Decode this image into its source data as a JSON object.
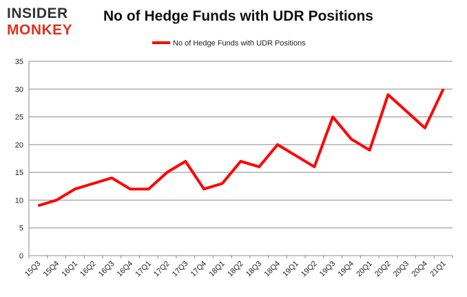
{
  "logo": {
    "line1": "INSIDER",
    "line2": "MONKEY"
  },
  "chart_data": {
    "type": "line",
    "title": "No of Hedge Funds with UDR Positions",
    "xlabel": "",
    "ylabel": "",
    "categories": [
      "15Q3",
      "15Q4",
      "16Q1",
      "16Q2",
      "16Q3",
      "16Q4",
      "17Q1",
      "17Q2",
      "17Q3",
      "17Q4",
      "18Q1",
      "18Q2",
      "18Q3",
      "18Q4",
      "19Q1",
      "19Q2",
      "19Q3",
      "19Q4",
      "20Q1",
      "20Q2",
      "20Q3",
      "20Q4",
      "21Q1"
    ],
    "series": [
      {
        "name": "No of Hedge Funds with UDR Positions",
        "color": "#ff0000",
        "values": [
          9,
          10,
          12,
          13,
          14,
          12,
          12,
          15,
          17,
          12,
          13,
          17,
          16,
          20,
          18,
          16,
          25,
          21,
          19,
          29,
          26,
          23,
          30
        ]
      }
    ],
    "ylim": [
      0,
      35
    ],
    "yticks": [
      0,
      5,
      10,
      15,
      20,
      25,
      30,
      35
    ],
    "grid": true,
    "legend": "top-center"
  }
}
